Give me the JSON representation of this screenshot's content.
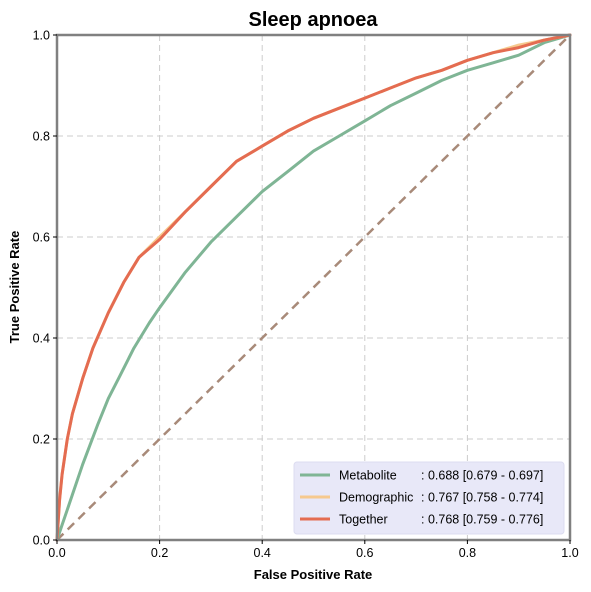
{
  "chart_data": {
    "type": "line",
    "title": "Sleep apnoea",
    "xlabel": "False Positive Rate",
    "ylabel": "True Positive Rate",
    "xlim": [
      0,
      1
    ],
    "ylim": [
      0,
      1
    ],
    "xticks": [
      "0.0",
      "0.2",
      "0.4",
      "0.6",
      "0.8",
      "1.0"
    ],
    "yticks": [
      "0.0",
      "0.2",
      "0.4",
      "0.6",
      "0.8",
      "1.0"
    ],
    "grid": true,
    "legend_position": "bottom-right",
    "series": [
      {
        "name": "Metabolite",
        "name_display": "Metabolite     ",
        "stat": ": 0.688 [0.679 - 0.697]",
        "color": "#7fb595",
        "x": [
          0,
          0.01,
          0.02,
          0.03,
          0.05,
          0.08,
          0.1,
          0.12,
          0.15,
          0.18,
          0.2,
          0.25,
          0.3,
          0.35,
          0.4,
          0.45,
          0.5,
          0.55,
          0.6,
          0.65,
          0.7,
          0.75,
          0.8,
          0.85,
          0.9,
          0.95,
          1.0
        ],
        "y": [
          0,
          0.03,
          0.06,
          0.09,
          0.15,
          0.23,
          0.28,
          0.32,
          0.38,
          0.43,
          0.46,
          0.53,
          0.59,
          0.64,
          0.69,
          0.73,
          0.77,
          0.8,
          0.83,
          0.86,
          0.885,
          0.91,
          0.93,
          0.945,
          0.96,
          0.985,
          1.0
        ]
      },
      {
        "name": "Demographic",
        "name_display": "Demographic",
        "stat": ": 0.767 [0.758 - 0.774]",
        "color": "#f6c98e",
        "x": [
          0,
          0.005,
          0.01,
          0.02,
          0.03,
          0.05,
          0.07,
          0.1,
          0.13,
          0.16,
          0.2,
          0.25,
          0.3,
          0.35,
          0.4,
          0.45,
          0.5,
          0.55,
          0.6,
          0.65,
          0.7,
          0.75,
          0.8,
          0.85,
          0.9,
          0.95,
          1.0
        ],
        "y": [
          0,
          0.08,
          0.13,
          0.2,
          0.25,
          0.32,
          0.38,
          0.45,
          0.51,
          0.56,
          0.6,
          0.65,
          0.7,
          0.75,
          0.78,
          0.81,
          0.835,
          0.855,
          0.875,
          0.895,
          0.915,
          0.93,
          0.95,
          0.965,
          0.98,
          0.99,
          1.0
        ]
      },
      {
        "name": "Together",
        "name_display": "Together       ",
        "stat": ": 0.768 [0.759 - 0.776]",
        "color": "#e46c51",
        "x": [
          0,
          0.005,
          0.01,
          0.02,
          0.03,
          0.05,
          0.07,
          0.1,
          0.13,
          0.16,
          0.2,
          0.25,
          0.3,
          0.35,
          0.4,
          0.45,
          0.5,
          0.55,
          0.6,
          0.65,
          0.7,
          0.75,
          0.8,
          0.85,
          0.9,
          0.95,
          1.0
        ],
        "y": [
          0,
          0.08,
          0.13,
          0.2,
          0.25,
          0.32,
          0.38,
          0.45,
          0.51,
          0.56,
          0.595,
          0.65,
          0.7,
          0.75,
          0.78,
          0.81,
          0.835,
          0.855,
          0.875,
          0.895,
          0.915,
          0.93,
          0.95,
          0.965,
          0.975,
          0.99,
          1.0
        ]
      }
    ],
    "reference_line": {
      "x": [
        0,
        1
      ],
      "y": [
        0,
        1
      ],
      "style": "dashed",
      "color": "#a88a79"
    },
    "colors": {
      "frame": "#808080",
      "grid": "#cccccc",
      "legend_bg": "#e8e8f8"
    }
  }
}
